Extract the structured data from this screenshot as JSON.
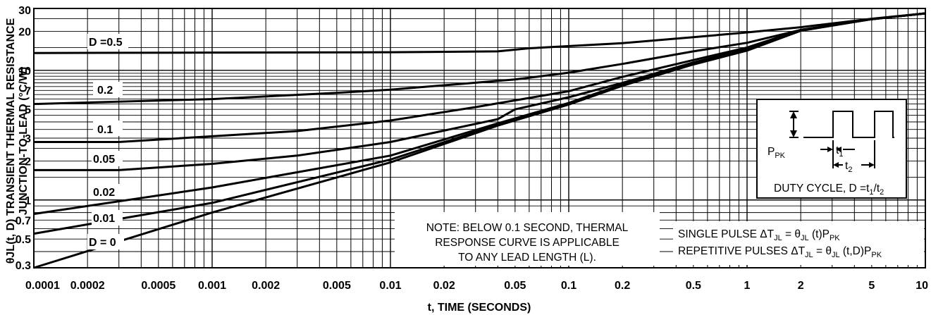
{
  "chart_data": {
    "type": "line",
    "xscale": "log",
    "yscale": "log",
    "xlim": [
      0.0001,
      10
    ],
    "ylim": [
      0.3,
      30
    ],
    "grid": true,
    "xlabel": "t, TIME (SECONDS)",
    "ylabel_line1": "θJL(t, D) TRANSIENT THERMAL RESISTANCE",
    "ylabel_line2": "JUNCTION-TO-LEAD (°C/W)",
    "x_ticks": [
      {
        "v": 0.0001,
        "label": "0.0001"
      },
      {
        "v": 0.0002,
        "label": "0.0002"
      },
      {
        "v": 0.0005,
        "label": "0.0005"
      },
      {
        "v": 0.001,
        "label": "0.001"
      },
      {
        "v": 0.002,
        "label": "0.002"
      },
      {
        "v": 0.005,
        "label": "0.005"
      },
      {
        "v": 0.01,
        "label": "0.01"
      },
      {
        "v": 0.02,
        "label": "0.02"
      },
      {
        "v": 0.05,
        "label": "0.05"
      },
      {
        "v": 0.1,
        "label": "0.1"
      },
      {
        "v": 0.2,
        "label": "0.2"
      },
      {
        "v": 0.5,
        "label": "0.5"
      },
      {
        "v": 1,
        "label": "1"
      },
      {
        "v": 2,
        "label": "2"
      },
      {
        "v": 5,
        "label": "5"
      },
      {
        "v": 10,
        "label": "10"
      }
    ],
    "y_ticks": [
      {
        "v": 0.3,
        "label": "0.3"
      },
      {
        "v": 0.5,
        "label": "0.5"
      },
      {
        "v": 0.7,
        "label": "0.7"
      },
      {
        "v": 1,
        "label": "1"
      },
      {
        "v": 2,
        "label": "2"
      },
      {
        "v": 3,
        "label": "3"
      },
      {
        "v": 5,
        "label": "5"
      },
      {
        "v": 7,
        "label": "7"
      },
      {
        "v": 10,
        "label": "10"
      },
      {
        "v": 20,
        "label": "20"
      },
      {
        "v": 30,
        "label": "30"
      }
    ],
    "series": [
      {
        "name": "D =0.5",
        "points": [
          [
            0.0001,
            13.6
          ],
          [
            0.001,
            13.7
          ],
          [
            0.01,
            13.8
          ],
          [
            0.04,
            14.0
          ],
          [
            0.06,
            14.8
          ],
          [
            0.2,
            16.2
          ],
          [
            0.5,
            18.0
          ],
          [
            1,
            19.6
          ],
          [
            2,
            21.5
          ],
          [
            5,
            25.0
          ],
          [
            10,
            27.5
          ]
        ]
      },
      {
        "name": "0.2",
        "points": [
          [
            0.0001,
            5.5
          ],
          [
            0.001,
            6.0
          ],
          [
            0.005,
            6.7
          ],
          [
            0.01,
            7.1
          ],
          [
            0.05,
            8.5
          ],
          [
            0.1,
            9.6
          ],
          [
            0.2,
            11.2
          ],
          [
            0.5,
            14.0
          ],
          [
            1,
            16.3
          ],
          [
            2,
            20.5
          ],
          [
            5,
            24.8
          ],
          [
            10,
            27.5
          ]
        ]
      },
      {
        "name": "0.1",
        "points": [
          [
            0.0001,
            2.8
          ],
          [
            0.0003,
            2.8
          ],
          [
            0.001,
            3.1
          ],
          [
            0.003,
            3.4
          ],
          [
            0.01,
            4.1
          ],
          [
            0.03,
            5.2
          ],
          [
            0.1,
            6.9
          ],
          [
            0.2,
            8.9
          ],
          [
            0.5,
            12.0
          ],
          [
            1,
            15.0
          ],
          [
            2,
            20.5
          ],
          [
            5,
            24.8
          ],
          [
            10,
            27.5
          ]
        ]
      },
      {
        "name": "0.05",
        "points": [
          [
            0.0001,
            1.7
          ],
          [
            0.0003,
            1.7
          ],
          [
            0.001,
            1.9
          ],
          [
            0.003,
            2.2
          ],
          [
            0.01,
            2.8
          ],
          [
            0.04,
            4.2
          ],
          [
            0.05,
            5.0
          ],
          [
            0.1,
            6.2
          ],
          [
            0.2,
            8.0
          ],
          [
            0.5,
            11.5
          ],
          [
            1,
            14.6
          ],
          [
            2,
            20.4
          ],
          [
            5,
            24.8
          ],
          [
            10,
            27.5
          ]
        ]
      },
      {
        "name": "0.02",
        "points": [
          [
            0.0001,
            0.78
          ],
          [
            0.001,
            1.25
          ],
          [
            0.01,
            2.2
          ],
          [
            0.04,
            3.9
          ],
          [
            0.1,
            5.6
          ],
          [
            0.2,
            7.8
          ],
          [
            0.5,
            11.3
          ],
          [
            1,
            14.4
          ],
          [
            2,
            20.3
          ],
          [
            5,
            24.8
          ],
          [
            10,
            27.5
          ]
        ]
      },
      {
        "name": "0.01",
        "points": [
          [
            0.0001,
            0.55
          ],
          [
            0.001,
            0.95
          ],
          [
            0.01,
            2.05
          ],
          [
            0.04,
            3.8
          ],
          [
            0.1,
            5.5
          ],
          [
            0.2,
            7.7
          ],
          [
            0.5,
            11.2
          ],
          [
            1,
            14.3
          ],
          [
            2,
            20.2
          ],
          [
            5,
            24.8
          ],
          [
            10,
            27.5
          ]
        ]
      },
      {
        "name": "D = 0",
        "points": [
          [
            0.0001,
            0.3
          ],
          [
            0.001,
            0.8
          ],
          [
            0.01,
            1.95
          ],
          [
            0.04,
            3.75
          ],
          [
            0.1,
            5.45
          ],
          [
            0.2,
            7.6
          ],
          [
            0.5,
            11.1
          ],
          [
            1,
            14.2
          ],
          [
            2,
            20.2
          ],
          [
            5,
            24.8
          ],
          [
            10,
            27.5
          ]
        ]
      }
    ],
    "curve_labels": [
      "D =0.5",
      "0.2",
      "0.1",
      "0.05",
      "0.02",
      "0.01",
      "D = 0"
    ],
    "note": [
      "NOTE: BELOW 0.1 SECOND, THERMAL",
      "RESPONSE CURVE IS APPLICABLE",
      "TO ANY LEAD LENGTH (L)."
    ],
    "formula1": {
      "pre": "SINGLE PULSE ΔT",
      "s1": "JL",
      "mid1": " = θ",
      "s2": "JL",
      "post": " (t)P",
      "s3": "PK"
    },
    "formula2": {
      "pre": "REPETITIVE PULSES ΔT",
      "s1": "JL",
      "mid1": " = θ",
      "s2": "JL",
      "post": " (t,D)P",
      "s3": "PK"
    },
    "inset": {
      "ppk": "P",
      "ppk_sub": "PK",
      "t1": "t",
      "t1_sub": "1",
      "t2": "t",
      "t2_sub": "2",
      "duty": "DUTY CYCLE, D =t",
      "duty_sub1": "1",
      "duty_mid": "/t",
      "duty_sub2": "2"
    }
  }
}
